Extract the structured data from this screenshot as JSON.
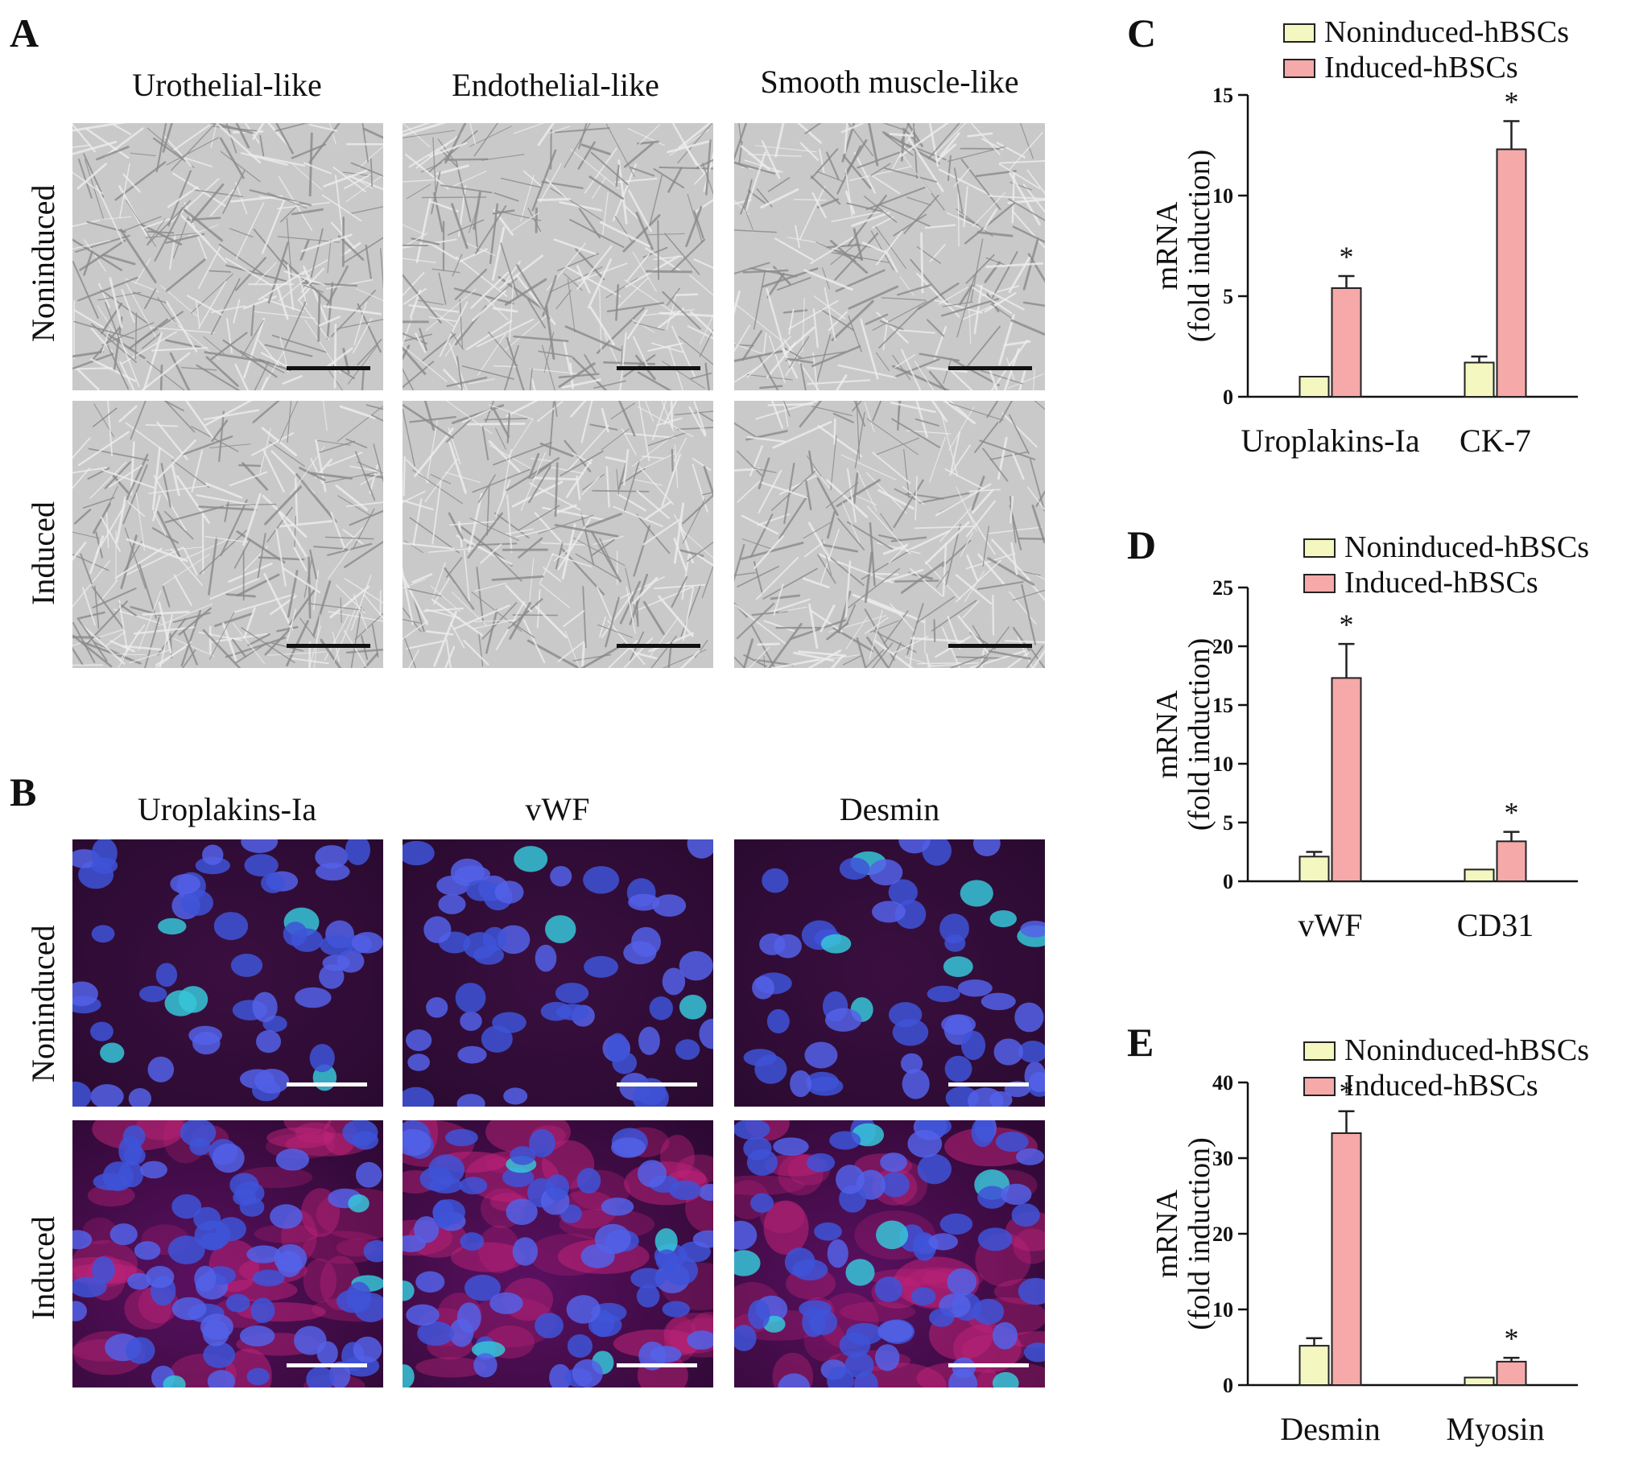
{
  "panels": {
    "A": {
      "letter": "A",
      "columns": [
        "Urothelial-like",
        "Endothelial-like",
        "Smooth muscle-like"
      ],
      "rows": [
        "Noninduced",
        "Induced"
      ]
    },
    "B": {
      "letter": "B",
      "columns": [
        "Uroplakins-Ia",
        "vWF",
        "Desmin"
      ],
      "rows": [
        "Noninduced",
        "Induced"
      ]
    }
  },
  "colors": {
    "noninduced": "#f4f8c0",
    "induced": "#f6a9a9",
    "bar_stroke": "#222222",
    "phase_scalebar": "#111111",
    "fluor_scalebar": "#ffffff"
  },
  "chart_data": [
    {
      "panel": "C",
      "type": "bar",
      "categories": [
        "Uroplakins-Ia",
        "CK-7"
      ],
      "series": [
        {
          "name": "Noninduced-hBSCs",
          "values": [
            1.0,
            1.7
          ],
          "errors": [
            0.0,
            0.3
          ]
        },
        {
          "name": "Induced-hBSCs",
          "values": [
            5.4,
            12.3
          ],
          "errors": [
            0.6,
            1.4
          ]
        }
      ],
      "significance": [
        [
          "",
          "*"
        ],
        [
          "",
          "*"
        ]
      ],
      "ylabel": "mRNA",
      "ylabel2": "(fold induction)",
      "ylim": [
        0,
        15
      ],
      "yticks": [
        0,
        5,
        10,
        15
      ],
      "legend_position": "top"
    },
    {
      "panel": "D",
      "type": "bar",
      "categories": [
        "vWF",
        "CD31"
      ],
      "series": [
        {
          "name": "Noninduced-hBSCs",
          "values": [
            2.1,
            1.0
          ],
          "errors": [
            0.4,
            0.0
          ]
        },
        {
          "name": "Induced-hBSCs",
          "values": [
            17.3,
            3.4
          ],
          "errors": [
            2.9,
            0.8
          ]
        }
      ],
      "significance": [
        [
          "",
          "*"
        ],
        [
          "",
          "*"
        ]
      ],
      "ylabel": "mRNA",
      "ylabel2": "(fold induction)",
      "ylim": [
        0,
        25
      ],
      "yticks": [
        0,
        5,
        10,
        15,
        20,
        25
      ],
      "legend_position": "top"
    },
    {
      "panel": "E",
      "type": "bar",
      "categories": [
        "Desmin",
        "Myosin"
      ],
      "series": [
        {
          "name": "Noninduced-hBSCs",
          "values": [
            5.2,
            1.0
          ],
          "errors": [
            1.0,
            0.0
          ]
        },
        {
          "name": "Induced-hBSCs",
          "values": [
            33.3,
            3.1
          ],
          "errors": [
            2.9,
            0.5
          ]
        }
      ],
      "significance": [
        [
          "",
          "*"
        ],
        [
          "",
          "*"
        ]
      ],
      "ylabel": "mRNA",
      "ylabel2": "(fold induction)",
      "ylim": [
        0,
        40
      ],
      "yticks": [
        0,
        10,
        20,
        30,
        40
      ],
      "legend_position": "top"
    }
  ]
}
